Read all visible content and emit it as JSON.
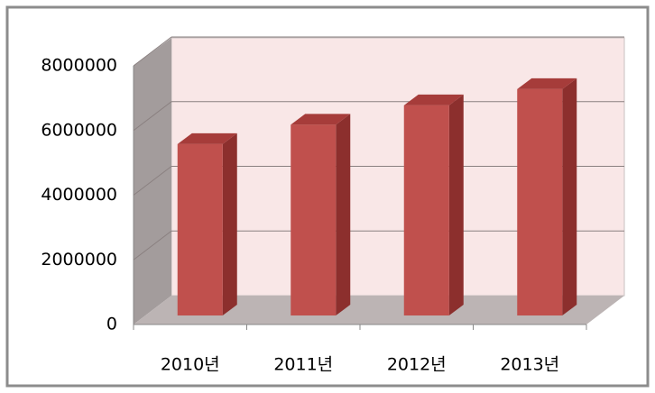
{
  "chart_data": {
    "type": "bar3d",
    "categories": [
      "2010년",
      "2011년",
      "2012년",
      "2013년"
    ],
    "values": [
      5300000,
      5900000,
      6500000,
      7000000
    ],
    "color": "#c0504d",
    "ylim": [
      0,
      8000000
    ],
    "yticks": [
      0,
      2000000,
      4000000,
      6000000,
      8000000
    ],
    "grid": true
  }
}
